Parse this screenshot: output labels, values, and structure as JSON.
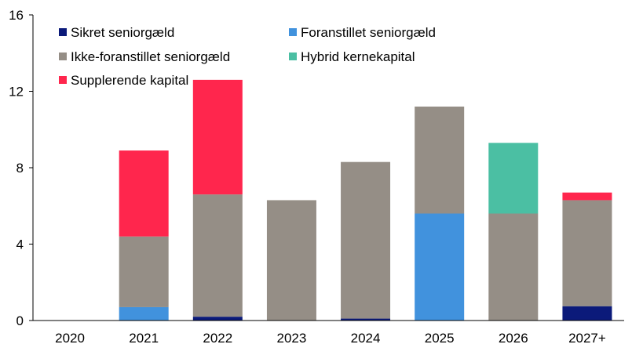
{
  "chart_data": {
    "type": "bar",
    "stacked": true,
    "title": "",
    "xlabel": "",
    "ylabel": "",
    "ylim": [
      0,
      16
    ],
    "yticks": [
      0,
      4,
      8,
      12,
      16
    ],
    "grid": false,
    "legend_position": "top-left",
    "categories": [
      "2020",
      "2021",
      "2022",
      "2023",
      "2024",
      "2025",
      "2026",
      "2027+"
    ],
    "series": [
      {
        "name": "Sikret seniorgæld",
        "color": "#0b1a7a",
        "values": [
          0,
          0,
          0.2,
          0,
          0.1,
          0,
          0,
          0.75
        ]
      },
      {
        "name": "Foranstillet seniorgæld",
        "color": "#4192dd",
        "values": [
          0,
          0.7,
          0,
          0,
          0,
          5.6,
          0,
          0
        ]
      },
      {
        "name": "Ikke-foranstillet seniorgæld",
        "color": "#958e86",
        "values": [
          0,
          3.7,
          6.4,
          6.3,
          8.2,
          5.6,
          5.6,
          5.55
        ]
      },
      {
        "name": "Hybrid kernekapital",
        "color": "#4bbfa3",
        "values": [
          0,
          0,
          0,
          0,
          0,
          0,
          3.7,
          0
        ]
      },
      {
        "name": "Supplerende kapital",
        "color": "#ff264d",
        "values": [
          0,
          4.5,
          6.0,
          0,
          0,
          0,
          0,
          0.4
        ]
      }
    ]
  }
}
